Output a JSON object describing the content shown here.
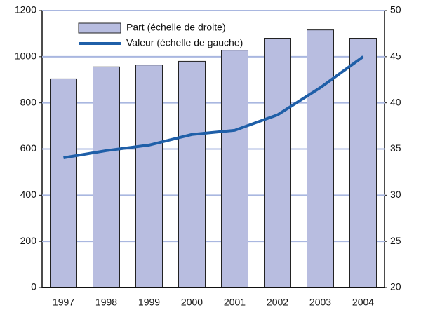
{
  "chart_data": {
    "type": "combo",
    "categories": [
      "1997",
      "1998",
      "1999",
      "2000",
      "2001",
      "2002",
      "2003",
      "2004"
    ],
    "series": [
      {
        "name": "Part (échelle de droite)",
        "type": "bar",
        "axis": "y2",
        "color": "#b8bde0",
        "values": [
          42.6,
          43.9,
          44.1,
          44.5,
          45.7,
          47.0,
          47.9,
          47.0
        ]
      },
      {
        "name": "Valeur (échelle de gauche)",
        "type": "line",
        "axis": "y",
        "color": "#1f5fa8",
        "values": [
          562,
          593,
          617,
          663,
          681,
          748,
          866,
          1000
        ]
      }
    ],
    "ylim": [
      0,
      1200
    ],
    "yticks": [
      0,
      200,
      400,
      600,
      800,
      1000,
      1200
    ],
    "y2lim": [
      20,
      50
    ],
    "y2ticks": [
      20,
      25,
      30,
      35,
      40,
      45,
      50
    ],
    "grid": true,
    "legend": "top-left"
  }
}
